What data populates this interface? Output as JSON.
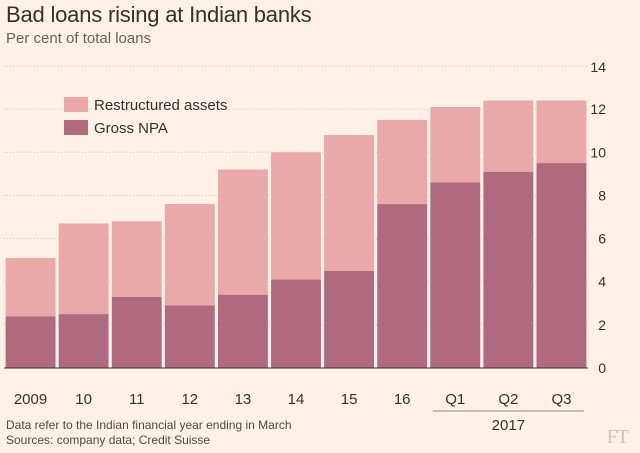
{
  "title": "Bad loans rising at Indian banks",
  "subtitle": "Per cent of total loans",
  "notes": {
    "line1": "Data refer to the Indian financial year ending in March",
    "line2": "Sources: company data; Credit Suisse"
  },
  "logo": "FT",
  "colors": {
    "background": "#fff1e5",
    "restructured": "#e8a9a8",
    "gross_npa": "#b06a7f",
    "grid": "#cfc5bd",
    "text": "#33302e"
  },
  "chart_data": {
    "type": "bar",
    "stacked": true,
    "categories": [
      "2009",
      "10",
      "11",
      "12",
      "13",
      "14",
      "15",
      "16",
      "Q1",
      "Q2",
      "Q3"
    ],
    "category_group_label": "2017",
    "series": [
      {
        "name": "Gross NPA",
        "values": [
          2.4,
          2.5,
          3.3,
          2.9,
          3.4,
          4.1,
          4.5,
          7.6,
          8.6,
          9.1,
          9.5
        ]
      },
      {
        "name": "Restructured assets",
        "values": [
          2.7,
          4.2,
          3.5,
          4.7,
          5.8,
          5.9,
          6.3,
          3.9,
          3.5,
          3.3,
          2.9
        ]
      }
    ],
    "totals": [
      5.1,
      6.7,
      6.8,
      7.6,
      9.2,
      10.0,
      10.8,
      11.5,
      12.1,
      12.4,
      12.4
    ],
    "ylim": [
      0,
      14
    ],
    "yticks": [
      0,
      2,
      4,
      6,
      8,
      10,
      12,
      14
    ],
    "y_axis_side": "right",
    "grid": true,
    "legend": "top-left",
    "legend_order": [
      "Restructured assets",
      "Gross NPA"
    ]
  }
}
